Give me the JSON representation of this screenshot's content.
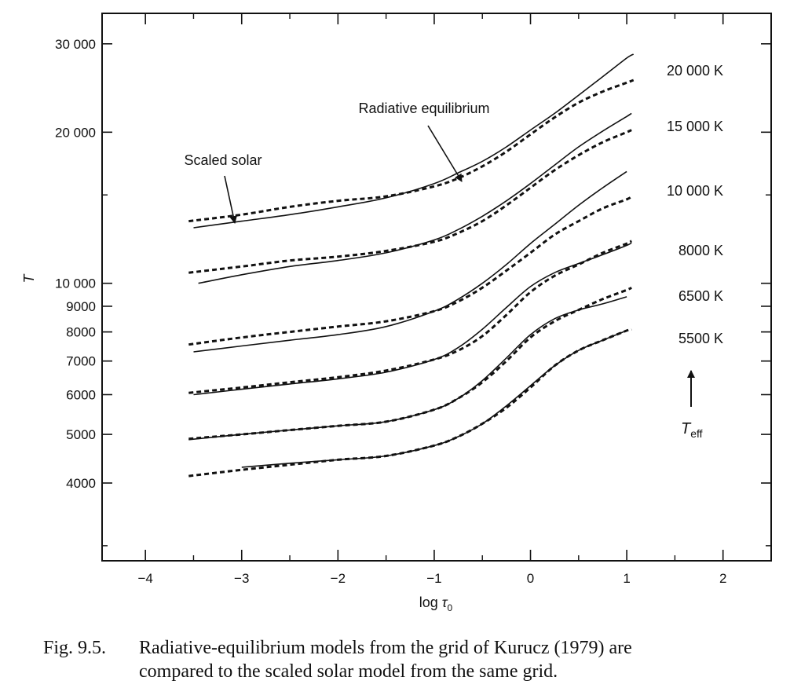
{
  "chart_data": {
    "type": "line",
    "xlabel": "log τ₀",
    "ylabel": "T",
    "xlim": [
      -4.45,
      2.5
    ],
    "ylim": [
      2800,
      34500
    ],
    "y_scale": "log",
    "x_ticks": [
      "−4",
      "−3",
      "−2",
      "−1",
      "0",
      "1",
      "2"
    ],
    "y_ticks": [
      {
        "value": 30000,
        "label": "30 000"
      },
      {
        "value": 20000,
        "label": "20 000"
      },
      {
        "value": 10000,
        "label": "10 000"
      },
      {
        "value": 9000,
        "label": "9000"
      },
      {
        "value": 8000,
        "label": "8000"
      },
      {
        "value": 7000,
        "label": "7000"
      },
      {
        "value": 6000,
        "label": "6000"
      },
      {
        "value": 5000,
        "label": "5000"
      },
      {
        "value": 4000,
        "label": "4000"
      }
    ],
    "line_styles": {
      "radiative_equilibrium": "solid",
      "scaled_solar": "dashed"
    },
    "series": [
      {
        "model_label": "20 000 K",
        "radiative_equilibrium": {
          "x": [
            -3.5,
            -3.0,
            -2.5,
            -2.0,
            -1.5,
            -1.0,
            -0.75,
            -0.5,
            -0.25,
            0.0,
            0.25,
            0.5,
            0.75,
            1.0,
            1.07
          ],
          "y": [
            12900,
            13300,
            13700,
            14200,
            14800,
            15800,
            16600,
            17500,
            18700,
            20200,
            21800,
            23700,
            25800,
            28100,
            28600
          ]
        },
        "scaled_solar": {
          "x": [
            -3.55,
            -3.0,
            -2.5,
            -2.0,
            -1.5,
            -1.0,
            -0.75,
            -0.5,
            -0.25,
            0.0,
            0.25,
            0.5,
            0.75,
            1.0,
            1.07
          ],
          "y": [
            13300,
            13700,
            14200,
            14600,
            14900,
            15600,
            16200,
            17100,
            18300,
            19800,
            21400,
            22900,
            24100,
            25100,
            25400
          ]
        }
      },
      {
        "model_label": "15 000 K",
        "radiative_equilibrium": {
          "x": [
            -3.45,
            -3.0,
            -2.5,
            -2.0,
            -1.5,
            -1.0,
            -0.75,
            -0.5,
            -0.25,
            0.0,
            0.25,
            0.5,
            0.75,
            1.0,
            1.05
          ],
          "y": [
            10000,
            10400,
            10800,
            11100,
            11500,
            12200,
            12800,
            13600,
            14600,
            15800,
            17200,
            18700,
            20100,
            21500,
            21800
          ]
        },
        "scaled_solar": {
          "x": [
            -3.55,
            -3.0,
            -2.5,
            -2.0,
            -1.5,
            -1.0,
            -0.75,
            -0.5,
            -0.25,
            0.0,
            0.25,
            0.5,
            0.75,
            1.0,
            1.05
          ],
          "y": [
            10500,
            10800,
            11100,
            11300,
            11600,
            12100,
            12600,
            13300,
            14300,
            15500,
            16800,
            18000,
            19100,
            20000,
            20200
          ]
        }
      },
      {
        "model_label": "10 000 K",
        "radiative_equilibrium": {
          "x": [
            -3.5,
            -3.0,
            -2.5,
            -2.0,
            -1.5,
            -1.0,
            -0.75,
            -0.5,
            -0.25,
            0.0,
            0.25,
            0.5,
            0.75,
            1.0
          ],
          "y": [
            7300,
            7500,
            7700,
            7900,
            8200,
            8800,
            9300,
            10000,
            10900,
            12000,
            13100,
            14300,
            15500,
            16700
          ]
        },
        "scaled_solar": {
          "x": [
            -3.55,
            -3.0,
            -2.5,
            -2.0,
            -1.5,
            -1.0,
            -0.75,
            -0.5,
            -0.25,
            0.0,
            0.25,
            0.5,
            0.75,
            1.0,
            1.05
          ],
          "y": [
            7550,
            7800,
            8000,
            8200,
            8400,
            8800,
            9200,
            9800,
            10600,
            11500,
            12500,
            13300,
            14100,
            14700,
            14900
          ]
        }
      },
      {
        "model_label": "8000 K",
        "radiative_equilibrium": {
          "x": [
            -3.5,
            -3.0,
            -2.5,
            -2.0,
            -1.5,
            -1.0,
            -0.75,
            -0.5,
            -0.25,
            0.0,
            0.25,
            0.5,
            0.75,
            1.0,
            1.05
          ],
          "y": [
            6000,
            6150,
            6300,
            6450,
            6650,
            7050,
            7450,
            8100,
            8950,
            9850,
            10500,
            10950,
            11400,
            11900,
            12050
          ]
        },
        "scaled_solar": {
          "x": [
            -3.55,
            -3.0,
            -2.5,
            -2.0,
            -1.5,
            -1.0,
            -0.75,
            -0.5,
            -0.25,
            0.0,
            0.25,
            0.5,
            0.75,
            1.0,
            1.05
          ],
          "y": [
            6050,
            6200,
            6350,
            6500,
            6700,
            7050,
            7350,
            7850,
            8650,
            9600,
            10350,
            10900,
            11500,
            12000,
            12150
          ]
        }
      },
      {
        "model_label": "6500 K",
        "radiative_equilibrium": {
          "x": [
            -3.55,
            -3.0,
            -2.5,
            -2.0,
            -1.5,
            -1.0,
            -0.75,
            -0.5,
            -0.25,
            0.0,
            0.25,
            0.5,
            0.75,
            1.0
          ],
          "y": [
            4880,
            5000,
            5100,
            5200,
            5300,
            5600,
            5900,
            6400,
            7100,
            7900,
            8500,
            8850,
            9100,
            9400
          ]
        },
        "scaled_solar": {
          "x": [
            -3.55,
            -3.0,
            -2.5,
            -2.0,
            -1.5,
            -1.0,
            -0.75,
            -0.5,
            -0.25,
            0.0,
            0.25,
            0.5,
            0.75,
            1.0,
            1.05
          ],
          "y": [
            4900,
            5000,
            5100,
            5200,
            5300,
            5600,
            5900,
            6350,
            7000,
            7800,
            8400,
            8850,
            9300,
            9700,
            9800
          ]
        }
      },
      {
        "model_label": "5500 K",
        "radiative_equilibrium": {
          "x": [
            -3.0,
            -2.5,
            -2.0,
            -1.5,
            -1.0,
            -0.75,
            -0.5,
            -0.25,
            0.0,
            0.25,
            0.5,
            0.75,
            1.0
          ],
          "y": [
            4300,
            4380,
            4450,
            4530,
            4750,
            4950,
            5250,
            5700,
            6250,
            6850,
            7350,
            7700,
            8050
          ]
        },
        "scaled_solar": {
          "x": [
            -3.55,
            -3.0,
            -2.5,
            -2.0,
            -1.5,
            -1.0,
            -0.75,
            -0.5,
            -0.25,
            0.0,
            0.25,
            0.5,
            0.75,
            1.0,
            1.05
          ],
          "y": [
            4130,
            4250,
            4350,
            4450,
            4530,
            4750,
            4950,
            5250,
            5650,
            6200,
            6850,
            7350,
            7700,
            8050,
            8100
          ]
        }
      }
    ],
    "annotations": {
      "radiative_equilibrium": "Radiative equilibrium",
      "scaled_solar": "Scaled solar",
      "teff": "T",
      "teff_sub": "eff"
    }
  },
  "caption": {
    "fig_number": "Fig. 9.5.",
    "line1": "Radiative-equilibrium models from the grid of Kurucz (1979) are",
    "line2": "compared to the scaled solar model from the same grid."
  }
}
